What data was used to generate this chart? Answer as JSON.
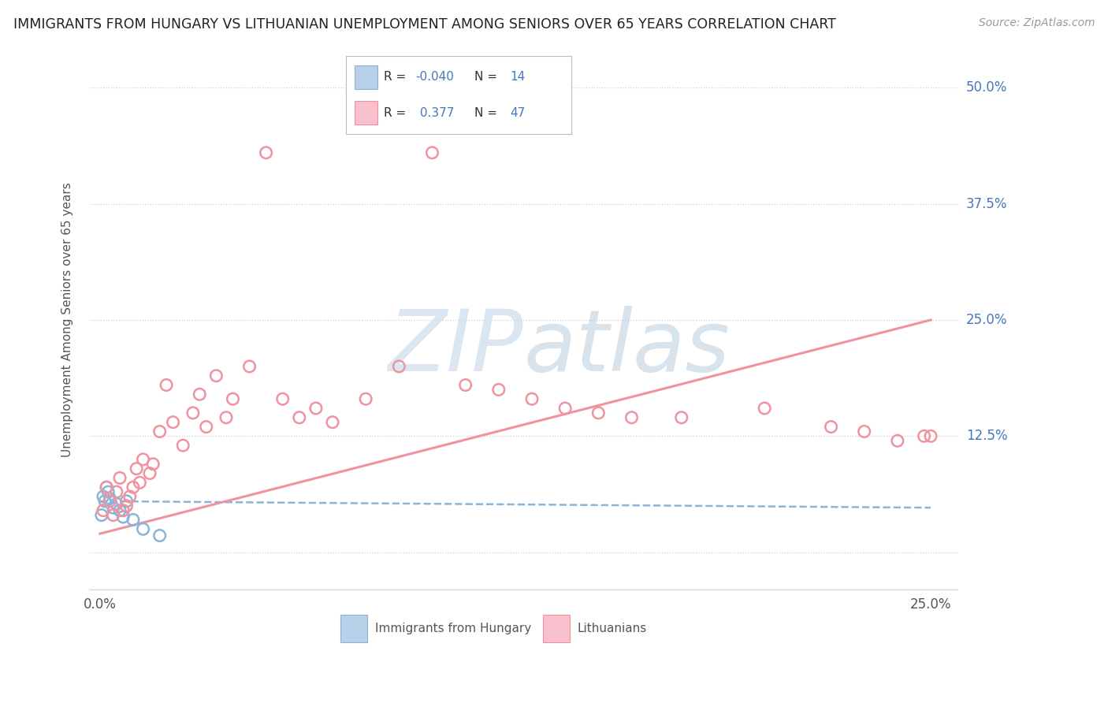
{
  "title": "IMMIGRANTS FROM HUNGARY VS LITHUANIAN UNEMPLOYMENT AMONG SENIORS OVER 65 YEARS CORRELATION CHART",
  "source": "Source: ZipAtlas.com",
  "ylabel": "Unemployment Among Seniors over 65 years",
  "background_color": "#ffffff",
  "grid_color": "#d0d0d0",
  "series1_color": "#8ab4d8",
  "series2_color": "#f093a0",
  "trendline1_color": "#8ab4d8",
  "trendline2_color": "#f093a0",
  "title_color": "#222222",
  "axis_label_color": "#4477bb",
  "ytick_vals": [
    0.0,
    0.125,
    0.25,
    0.375,
    0.5
  ],
  "ytick_labels": [
    "",
    "12.5%",
    "25.0%",
    "37.5%",
    "50.0%"
  ],
  "xlim": [
    -0.003,
    0.258
  ],
  "ylim": [
    -0.04,
    0.54
  ],
  "hungary_x": [
    0.0005,
    0.001,
    0.0015,
    0.002,
    0.0025,
    0.003,
    0.004,
    0.005,
    0.006,
    0.007,
    0.008,
    0.01,
    0.013,
    0.018
  ],
  "hungary_y": [
    0.04,
    0.06,
    0.055,
    0.07,
    0.065,
    0.058,
    0.048,
    0.052,
    0.045,
    0.038,
    0.055,
    0.035,
    0.025,
    0.018
  ],
  "lith_x": [
    0.001,
    0.002,
    0.003,
    0.004,
    0.005,
    0.006,
    0.007,
    0.008,
    0.009,
    0.01,
    0.011,
    0.012,
    0.013,
    0.015,
    0.016,
    0.018,
    0.02,
    0.022,
    0.025,
    0.028,
    0.03,
    0.032,
    0.035,
    0.038,
    0.04,
    0.045,
    0.05,
    0.055,
    0.06,
    0.065,
    0.07,
    0.08,
    0.09,
    0.1,
    0.11,
    0.12,
    0.13,
    0.14,
    0.15,
    0.16,
    0.175,
    0.2,
    0.22,
    0.23,
    0.24,
    0.248,
    0.25
  ],
  "lith_y": [
    0.045,
    0.07,
    0.055,
    0.04,
    0.065,
    0.08,
    0.045,
    0.05,
    0.06,
    0.07,
    0.09,
    0.075,
    0.1,
    0.085,
    0.095,
    0.13,
    0.18,
    0.14,
    0.115,
    0.15,
    0.17,
    0.135,
    0.19,
    0.145,
    0.165,
    0.2,
    0.43,
    0.165,
    0.145,
    0.155,
    0.14,
    0.165,
    0.2,
    0.43,
    0.18,
    0.175,
    0.165,
    0.155,
    0.15,
    0.145,
    0.145,
    0.155,
    0.135,
    0.13,
    0.12,
    0.125,
    0.125
  ],
  "trendline2_x0": 0.0,
  "trendline2_y0": 0.02,
  "trendline2_x1": 0.25,
  "trendline2_y1": 0.25,
  "trendline1_x0": 0.0,
  "trendline1_y0": 0.055,
  "trendline1_x1": 0.25,
  "trendline1_y1": 0.048
}
